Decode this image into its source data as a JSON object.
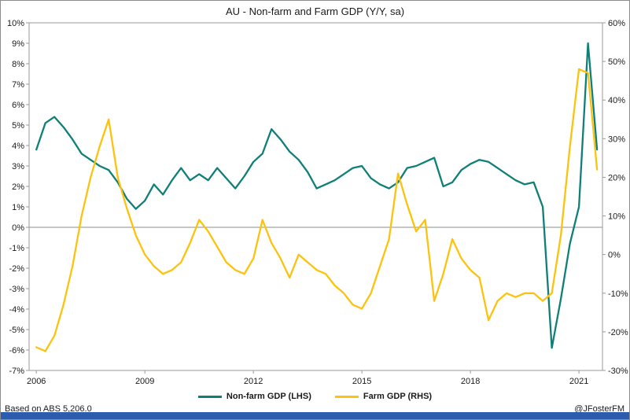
{
  "title": "AU - Non-farm and Farm GDP (Y/Y, sa)",
  "footer": {
    "source": "Based on ABS 5,206.0",
    "credit": "@JFosterFM"
  },
  "colors": {
    "nonfarm": "#0e8077",
    "farm": "#fdc20e",
    "taskbar": "#2b5cad",
    "zero_line": "#8c8c8c",
    "plot_border": "#9a9a9a"
  },
  "chart_data": {
    "type": "line",
    "title": "AU - Non-farm and Farm GDP (Y/Y, sa)",
    "x_unit": "quarterly",
    "x_start_year": 2006,
    "x_ticks": [
      2006,
      2009,
      2012,
      2015,
      2018,
      2021
    ],
    "left_axis": {
      "min": -7,
      "max": 10,
      "step": 1,
      "unit": "%"
    },
    "right_axis": {
      "min": -30,
      "max": 60,
      "step": 10,
      "unit": "%"
    },
    "grid": "zero-line-only",
    "legend_position": "bottom",
    "series": [
      {
        "name": "Non-farm GDP (LHS)",
        "axis": "left",
        "color": "#0e8077",
        "values": [
          3.8,
          5.1,
          5.4,
          4.9,
          4.3,
          3.6,
          3.3,
          3.0,
          2.8,
          2.2,
          1.4,
          0.9,
          1.3,
          2.1,
          1.6,
          2.3,
          2.9,
          2.3,
          2.6,
          2.3,
          2.9,
          2.4,
          1.9,
          2.5,
          3.2,
          3.6,
          4.8,
          4.3,
          3.7,
          3.3,
          2.7,
          1.9,
          2.1,
          2.3,
          2.6,
          2.9,
          3.0,
          2.4,
          2.1,
          1.9,
          2.2,
          2.9,
          3.0,
          3.2,
          3.4,
          2.0,
          2.2,
          2.8,
          3.1,
          3.3,
          3.2,
          2.9,
          2.6,
          2.3,
          2.1,
          2.2,
          1.0,
          -5.9,
          -3.5,
          -0.8,
          1.0,
          9.0,
          3.8
        ]
      },
      {
        "name": "Farm GDP (RHS)",
        "axis": "right",
        "color": "#fdc20e",
        "values": [
          -24,
          -25,
          -21,
          -13,
          -3,
          10,
          20,
          28,
          35,
          20,
          12,
          5,
          0,
          -3,
          -5,
          -4,
          -2,
          3,
          9,
          6,
          2,
          -2,
          -4,
          -5,
          -1,
          9,
          3,
          -1,
          -6,
          0,
          -2,
          -4,
          -5,
          -8,
          -10,
          -13,
          -14,
          -10,
          -3,
          4,
          21,
          13,
          6,
          9,
          -12,
          -5,
          4,
          -1,
          -4,
          -6,
          -17,
          -12,
          -10,
          -11,
          -10,
          -10,
          -12,
          -10,
          5,
          28,
          48,
          47,
          22
        ]
      }
    ]
  }
}
